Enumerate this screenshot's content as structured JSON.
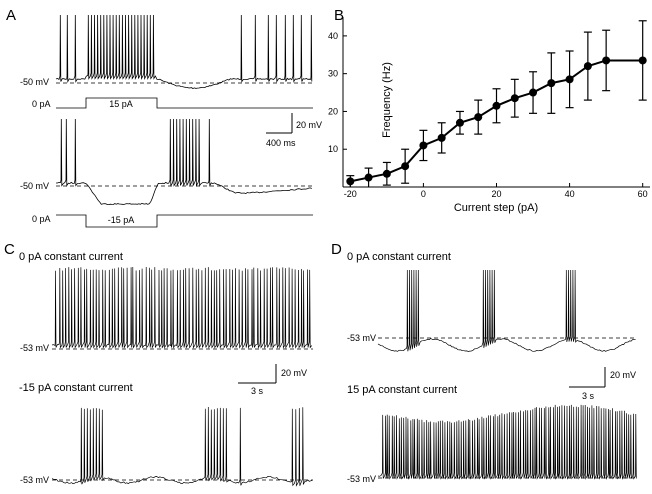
{
  "panels": {
    "A": {
      "letter": "A",
      "top_baseline": "-50 mV",
      "bottom_baseline": "-50 mV",
      "cmd_top_zero": "0 pA",
      "cmd_top_step": "15 pA",
      "cmd_bottom_zero": "0 pA",
      "cmd_bottom_step": "-15 pA",
      "scale_v": "20 mV",
      "scale_t": "400 ms"
    },
    "B": {
      "letter": "B"
    },
    "C": {
      "letter": "C",
      "title_top": "0 pA constant current",
      "title_bottom": "-15 pA constant current",
      "baseline_top": "-53 mV",
      "baseline_bottom": "-53 mV",
      "scale_v": "20 mV",
      "scale_t": "3 s"
    },
    "D": {
      "letter": "D",
      "title_top": "0 pA constant current",
      "title_bottom": "15 pA constant current",
      "baseline_top": "-53 mV",
      "baseline_bottom": "-53 mV",
      "scale_v": "20 mV",
      "scale_t": "3 s"
    }
  },
  "chart_data": {
    "type": "line",
    "xlabel": "Current step (pA)",
    "ylabel": "Frequency (Hz)",
    "xlim": [
      -22,
      62
    ],
    "ylim": [
      0,
      45
    ],
    "xticks": [
      -20,
      0,
      20,
      40,
      60
    ],
    "yticks": [
      10,
      20,
      30,
      40
    ],
    "grid": false,
    "series": [
      {
        "x": [
          -20,
          -15,
          -10,
          -5,
          0,
          5,
          10,
          15,
          20,
          25,
          30,
          35,
          40,
          45,
          50,
          60
        ],
        "y": [
          1.5,
          2.5,
          3.5,
          5.5,
          11,
          13,
          17,
          18.5,
          21.5,
          23.5,
          25,
          27.5,
          28.5,
          32,
          33.5,
          33.5
        ],
        "err": [
          1.5,
          2.5,
          3,
          4.5,
          4,
          4,
          3,
          4.5,
          4.5,
          5,
          5.5,
          8,
          7.5,
          9,
          8,
          10.5
        ]
      }
    ]
  }
}
